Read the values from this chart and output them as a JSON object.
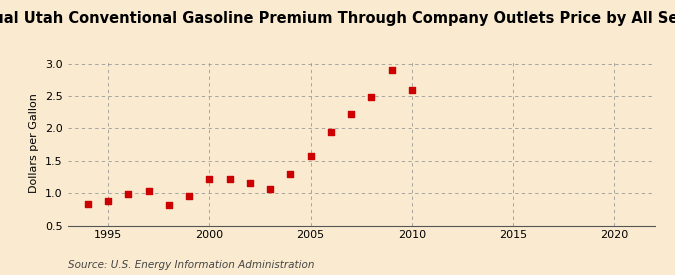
{
  "title": "Annual Utah Conventional Gasoline Premium Through Company Outlets Price by All Sellers",
  "ylabel": "Dollars per Gallon",
  "source": "Source: U.S. Energy Information Administration",
  "background_color": "#faebd0",
  "years": [
    1994,
    1995,
    1996,
    1997,
    1998,
    1999,
    2000,
    2001,
    2002,
    2003,
    2004,
    2005,
    2006,
    2007,
    2008,
    2009,
    2010
  ],
  "values": [
    0.83,
    0.88,
    0.99,
    1.03,
    0.82,
    0.96,
    1.22,
    1.22,
    1.15,
    1.06,
    1.29,
    1.57,
    1.95,
    2.22,
    2.48,
    2.9,
    2.59
  ],
  "marker_color": "#cc0000",
  "marker_size": 16,
  "xlim": [
    1993,
    2022
  ],
  "ylim": [
    0.5,
    3.05
  ],
  "xticks": [
    1995,
    2000,
    2005,
    2010,
    2015,
    2020
  ],
  "yticks": [
    0.5,
    1.0,
    1.5,
    2.0,
    2.5,
    3.0
  ],
  "grid_color": "#999999",
  "grid_linestyle": "--",
  "title_fontsize": 10.5,
  "ylabel_fontsize": 8,
  "tick_fontsize": 8,
  "source_fontsize": 7.5
}
